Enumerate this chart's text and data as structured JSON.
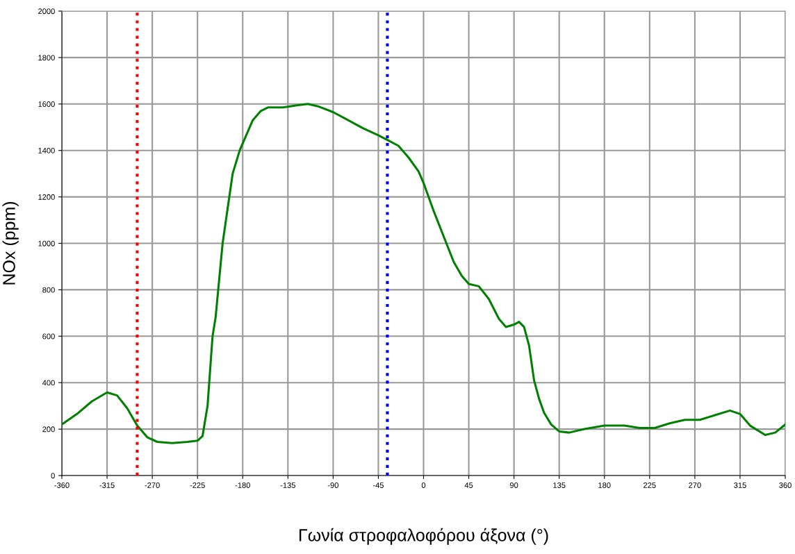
{
  "chart_data": {
    "type": "line",
    "xlabel": "Γωνία στροφαλοφόρου άξονα (°)",
    "ylabel": "NOx (ppm)",
    "x": [
      -360,
      -345,
      -330,
      -315,
      -305,
      -295,
      -285,
      -275,
      -265,
      -250,
      -235,
      -225,
      -220,
      -215,
      -210,
      -207,
      -200,
      -195,
      -190,
      -183,
      -178,
      -170,
      -162,
      -155,
      -140,
      -125,
      -115,
      -105,
      -90,
      -75,
      -60,
      -45,
      -36,
      -25,
      -15,
      -5,
      0,
      10,
      20,
      30,
      38,
      45,
      55,
      65,
      75,
      82,
      90,
      95,
      100,
      105,
      110,
      115,
      120,
      127,
      135,
      145,
      160,
      180,
      200,
      215,
      230,
      245,
      260,
      275,
      290,
      305,
      315,
      325,
      340,
      350,
      360
    ],
    "series": [
      {
        "color": "#008000",
        "values": [
          220,
          265,
          320,
          358,
          345,
          290,
          215,
          165,
          145,
          140,
          145,
          150,
          170,
          300,
          600,
          680,
          1000,
          1150,
          1300,
          1400,
          1450,
          1530,
          1570,
          1585,
          1585,
          1595,
          1600,
          1590,
          1565,
          1530,
          1495,
          1465,
          1445,
          1420,
          1370,
          1310,
          1260,
          1140,
          1030,
          920,
          860,
          825,
          815,
          760,
          675,
          640,
          650,
          662,
          640,
          560,
          410,
          330,
          270,
          220,
          190,
          185,
          200,
          215,
          215,
          205,
          205,
          225,
          240,
          240,
          260,
          280,
          265,
          215,
          175,
          185,
          220
        ]
      }
    ],
    "xlim": [
      -360,
      360
    ],
    "xticks": [
      -360,
      -315,
      -270,
      -225,
      -180,
      -135,
      -90,
      -45,
      0,
      45,
      90,
      135,
      180,
      225,
      270,
      315,
      360
    ],
    "ylim": [
      0,
      2000
    ],
    "yticks": [
      0,
      200,
      400,
      600,
      800,
      1000,
      1200,
      1400,
      1600,
      1800,
      2000
    ],
    "grid": true,
    "legend": false,
    "marker": "none",
    "line_style": "solid",
    "ref_lines": [
      {
        "axis": "x",
        "value": -285,
        "color": "#ff0000",
        "line_style": "dotted"
      },
      {
        "axis": "x",
        "value": -36,
        "color": "#0000ff",
        "line_style": "dotted"
      }
    ]
  }
}
